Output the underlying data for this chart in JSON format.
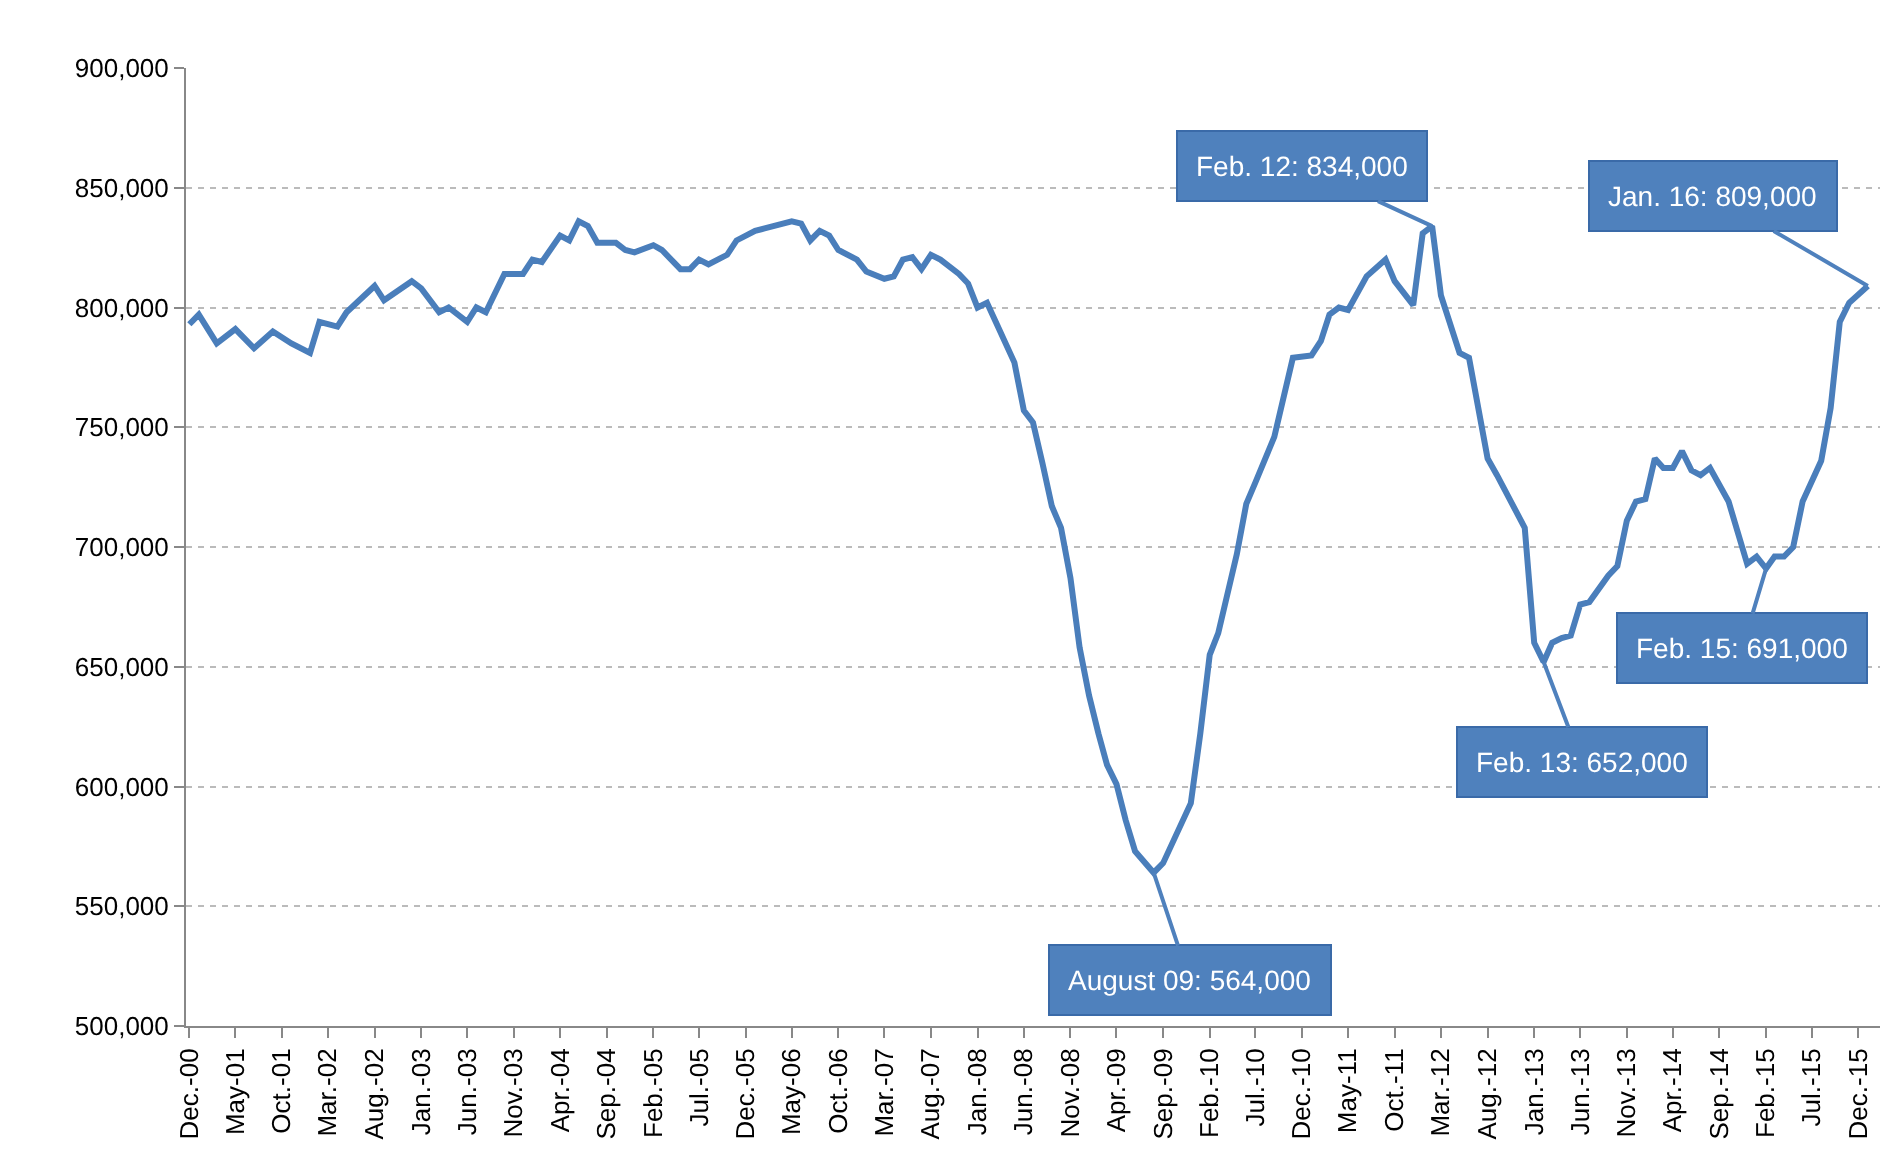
{
  "chart_data": {
    "type": "line",
    "x": [
      "2000-12",
      "2001-01",
      "2001-03",
      "2001-05",
      "2001-07",
      "2001-09",
      "2001-11",
      "2002-01",
      "2002-02",
      "2002-04",
      "2002-05",
      "2002-08",
      "2002-09",
      "2002-12",
      "2003-01",
      "2003-03",
      "2003-04",
      "2003-06",
      "2003-07",
      "2003-08",
      "2003-10",
      "2003-12",
      "2004-01",
      "2004-02",
      "2004-04",
      "2004-05",
      "2004-06",
      "2004-07",
      "2004-08",
      "2004-10",
      "2004-11",
      "2004-12",
      "2005-02",
      "2005-03",
      "2005-05",
      "2005-06",
      "2005-07",
      "2005-08",
      "2005-10",
      "2005-11",
      "2006-01",
      "2006-02",
      "2006-05",
      "2006-06",
      "2006-07",
      "2006-08",
      "2006-09",
      "2006-10",
      "2006-12",
      "2007-01",
      "2007-03",
      "2007-04",
      "2007-05",
      "2007-06",
      "2007-07",
      "2007-08",
      "2007-09",
      "2007-11",
      "2007-12",
      "2008-01",
      "2008-02",
      "2008-03",
      "2008-05",
      "2008-06",
      "2008-07",
      "2008-08",
      "2008-09",
      "2008-10",
      "2008-11",
      "2008-12",
      "2009-01",
      "2009-02",
      "2009-03",
      "2009-04",
      "2009-05",
      "2009-06",
      "2009-08",
      "2009-09",
      "2009-12",
      "2010-01",
      "2010-02",
      "2010-03",
      "2010-05",
      "2010-06",
      "2010-07",
      "2010-09",
      "2010-11",
      "2011-01",
      "2011-02",
      "2011-03",
      "2011-04",
      "2011-05",
      "2011-07",
      "2011-09",
      "2011-10",
      "2011-12",
      "2012-01",
      "2012-02",
      "2012-03",
      "2012-05",
      "2012-06",
      "2012-08",
      "2012-09",
      "2012-12",
      "2013-01",
      "2013-02",
      "2013-03",
      "2013-04",
      "2013-05",
      "2013-06",
      "2013-07",
      "2013-09",
      "2013-10",
      "2013-11",
      "2013-12",
      "2014-01",
      "2014-02",
      "2014-03",
      "2014-04",
      "2014-05",
      "2014-06",
      "2014-07",
      "2014-08",
      "2014-10",
      "2014-12",
      "2015-01",
      "2015-02",
      "2015-03",
      "2015-04",
      "2015-05",
      "2015-06",
      "2015-08",
      "2015-09",
      "2015-10",
      "2015-11",
      "2016-01"
    ],
    "series": [
      {
        "color": "#4a7ebb",
        "values": [
          793000,
          797000,
          785000,
          791000,
          783000,
          790000,
          785000,
          781000,
          794000,
          792000,
          798000,
          809000,
          803000,
          811000,
          808000,
          798000,
          800000,
          794000,
          800000,
          798000,
          814000,
          814000,
          820000,
          819000,
          830000,
          828000,
          836000,
          834000,
          827000,
          827000,
          824000,
          823000,
          826000,
          824000,
          816000,
          816000,
          820000,
          818000,
          822000,
          828000,
          832000,
          833000,
          836000,
          835000,
          828000,
          832000,
          830000,
          824000,
          820000,
          815000,
          812000,
          813000,
          820000,
          821000,
          816000,
          822000,
          820000,
          814000,
          810000,
          800000,
          802000,
          794000,
          777000,
          757000,
          752000,
          735000,
          717000,
          708000,
          687000,
          658000,
          638000,
          622000,
          609000,
          601000,
          586000,
          573000,
          564000,
          568000,
          593000,
          622000,
          655000,
          664000,
          697000,
          718000,
          727000,
          746000,
          779000,
          780000,
          786000,
          797000,
          800000,
          799000,
          813000,
          820000,
          811000,
          801000,
          831000,
          834000,
          805000,
          781000,
          779000,
          737000,
          730000,
          708000,
          660000,
          652000,
          660000,
          662000,
          663000,
          676000,
          677000,
          688000,
          692000,
          711000,
          719000,
          720000,
          737000,
          733000,
          733000,
          740000,
          732000,
          730000,
          733000,
          719000,
          693000,
          696000,
          691000,
          696000,
          696000,
          700000,
          719000,
          736000,
          758000,
          794000,
          802000,
          809000
        ]
      }
    ],
    "xlim": [
      "2000-11-20",
      "2016-02-10"
    ],
    "xticks": [
      {
        "value": "2000-12",
        "label": "Dec.-00"
      },
      {
        "value": "2001-05",
        "label": "May-01"
      },
      {
        "value": "2001-10",
        "label": "Oct.-01"
      },
      {
        "value": "2002-03",
        "label": "Mar.-02"
      },
      {
        "value": "2002-08",
        "label": "Aug.-02"
      },
      {
        "value": "2003-01",
        "label": "Jan.-03"
      },
      {
        "value": "2003-06",
        "label": "Jun.-03"
      },
      {
        "value": "2003-11",
        "label": "Nov.-03"
      },
      {
        "value": "2004-04",
        "label": "Apr.-04"
      },
      {
        "value": "2004-09",
        "label": "Sep.-04"
      },
      {
        "value": "2005-02",
        "label": "Feb.-05"
      },
      {
        "value": "2005-07",
        "label": "Jul.-05"
      },
      {
        "value": "2005-12",
        "label": "Dec.-05"
      },
      {
        "value": "2006-05",
        "label": "May-06"
      },
      {
        "value": "2006-10",
        "label": "Oct.-06"
      },
      {
        "value": "2007-03",
        "label": "Mar.-07"
      },
      {
        "value": "2007-08",
        "label": "Aug.-07"
      },
      {
        "value": "2008-01",
        "label": "Jan.-08"
      },
      {
        "value": "2008-06",
        "label": "Jun.-08"
      },
      {
        "value": "2008-11",
        "label": "Nov.-08"
      },
      {
        "value": "2009-04",
        "label": "Apr.-09"
      },
      {
        "value": "2009-09",
        "label": "Sep.-09"
      },
      {
        "value": "2010-02",
        "label": "Feb.-10"
      },
      {
        "value": "2010-07",
        "label": "Jul.-10"
      },
      {
        "value": "2010-12",
        "label": "Dec.-10"
      },
      {
        "value": "2011-05",
        "label": "May-11"
      },
      {
        "value": "2011-10",
        "label": "Oct.-11"
      },
      {
        "value": "2012-03",
        "label": "Mar.-12"
      },
      {
        "value": "2012-08",
        "label": "Aug.-12"
      },
      {
        "value": "2013-01",
        "label": "Jan.-13"
      },
      {
        "value": "2013-06",
        "label": "Jun.-13"
      },
      {
        "value": "2013-11",
        "label": "Nov.-13"
      },
      {
        "value": "2014-04",
        "label": "Apr.-14"
      },
      {
        "value": "2014-09",
        "label": "Sep.-14"
      },
      {
        "value": "2015-02",
        "label": "Feb.-15"
      },
      {
        "value": "2015-07",
        "label": "Jul.-15"
      },
      {
        "value": "2015-12",
        "label": "Dec.-15"
      }
    ],
    "ylim": [
      500000,
      900000
    ],
    "yticks": [
      {
        "value": 500000,
        "label": "500,000"
      },
      {
        "value": 550000,
        "label": "550,000"
      },
      {
        "value": 600000,
        "label": "600,000"
      },
      {
        "value": 650000,
        "label": "650,000"
      },
      {
        "value": 700000,
        "label": "700,000"
      },
      {
        "value": 750000,
        "label": "750,000"
      },
      {
        "value": 800000,
        "label": "800,000"
      },
      {
        "value": 850000,
        "label": "850,000"
      },
      {
        "value": 900000,
        "label": "900,000"
      }
    ],
    "grid": "y",
    "legend": false,
    "marker": "none",
    "line_style": "solid",
    "annotations": [
      {
        "text": "August 09: 564,000",
        "x": "2009-08",
        "y": 564000
      },
      {
        "text": "Feb. 12: 834,000",
        "x": "2012-02",
        "y": 834000
      },
      {
        "text": "Jan. 16: 809,000",
        "x": "2016-01",
        "y": 809000
      },
      {
        "text": "Feb. 13: 652,000",
        "x": "2013-02",
        "y": 652000
      },
      {
        "text": "Feb. 15: 691,000",
        "x": "2015-02",
        "y": 691000
      }
    ]
  }
}
